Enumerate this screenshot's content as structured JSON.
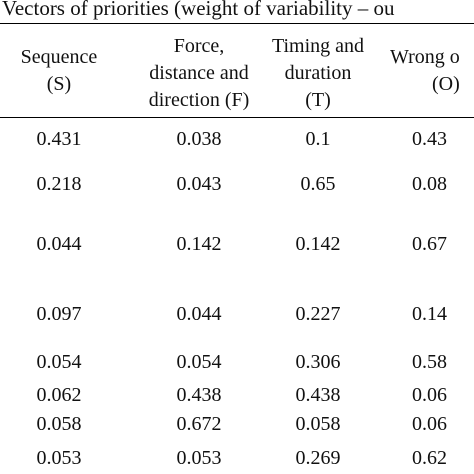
{
  "caption": "Vectors of priorities (weight of variability – ou",
  "columns": [
    {
      "lines": [
        "Sequence",
        "(S)"
      ]
    },
    {
      "lines": [
        "Force,",
        "distance and",
        "direction (F)"
      ]
    },
    {
      "lines": [
        "Timing and",
        "duration",
        "(T)"
      ]
    },
    {
      "lines": [
        "Wrong o",
        "(O)"
      ]
    }
  ],
  "rows": [
    [
      "0.431",
      "0.038",
      "0.1",
      "0.43"
    ],
    [
      "0.218",
      "0.043",
      "0.65",
      "0.08"
    ],
    [
      "0.044",
      "0.142",
      "0.142",
      "0.67"
    ],
    [
      "0.097",
      "0.044",
      "0.227",
      "0.14"
    ],
    [
      "0.054",
      "0.054",
      "0.306",
      "0.58"
    ],
    [
      "0.062",
      "0.438",
      "0.438",
      "0.06"
    ],
    [
      "0.058",
      "0.672",
      "0.058",
      "0.06"
    ],
    [
      "0.053",
      "0.053",
      "0.269",
      "0.62"
    ]
  ]
}
